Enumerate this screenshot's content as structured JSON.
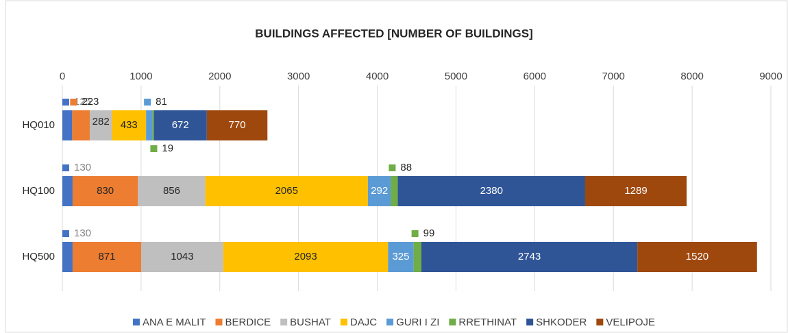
{
  "chart_data": {
    "type": "stacked_barh",
    "title": "BUILDINGS AFFECTED [NUMBER OF BUILDINGS]",
    "categories": [
      "HQ010",
      "HQ100",
      "HQ500"
    ],
    "series": [
      {
        "name": "ANA E MALIT",
        "color": "#4472c4",
        "values": [
          125,
          130,
          130
        ]
      },
      {
        "name": "BERDICE",
        "color": "#ed7d31",
        "values": [
          223,
          830,
          871
        ]
      },
      {
        "name": "BUSHAT",
        "color": "#bfbfbf",
        "values": [
          282,
          856,
          1043
        ]
      },
      {
        "name": "DAJC",
        "color": "#ffc000",
        "values": [
          433,
          2065,
          2093
        ]
      },
      {
        "name": "GURI I ZI",
        "color": "#5b9bd5",
        "values": [
          81,
          292,
          325
        ]
      },
      {
        "name": "RRETHINAT",
        "color": "#70ad47",
        "values": [
          19,
          88,
          99
        ]
      },
      {
        "name": "SHKODER",
        "color": "#2f5597",
        "values": [
          672,
          2380,
          2743
        ]
      },
      {
        "name": "VELIPOJE",
        "color": "#9e480e",
        "values": [
          770,
          1289,
          1520
        ]
      }
    ],
    "xlim": [
      0,
      9000
    ],
    "xticks": [
      0,
      1000,
      2000,
      3000,
      4000,
      5000,
      6000,
      7000,
      8000,
      9000
    ],
    "grid": true,
    "legend": "bottom"
  }
}
